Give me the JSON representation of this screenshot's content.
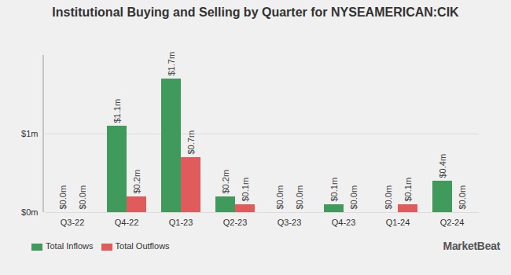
{
  "chart_data": {
    "type": "bar",
    "title": "Institutional Buying and Selling by Quarter for NYSEAMERICAN:CIK",
    "categories": [
      "Q3-22",
      "Q4-22",
      "Q1-23",
      "Q2-23",
      "Q3-23",
      "Q4-23",
      "Q1-24",
      "Q2-24"
    ],
    "series": [
      {
        "name": "Total Inflows",
        "color": "#3f9a5c",
        "values": [
          0,
          1.1,
          1.7,
          0.2,
          0,
          0.1,
          0,
          0.4
        ],
        "value_labels": [
          "$0.0m",
          "$1.1m",
          "$1.7m",
          "$0.2m",
          "$0.0m",
          "$0.1m",
          "$0.0m",
          "$0.4m"
        ]
      },
      {
        "name": "Total Outflows",
        "color": "#e05c5c",
        "values": [
          0,
          0.2,
          0.7,
          0.1,
          0,
          0,
          0.1,
          0
        ],
        "value_labels": [
          "$0.0m",
          "$0.2m",
          "$0.7m",
          "$0.1m",
          "$0.0m",
          "$0.0m",
          "$0.1m",
          "$0.0m"
        ]
      }
    ],
    "ylim": [
      0,
      2
    ],
    "yticks": [
      {
        "value": 0,
        "label": "$0m"
      },
      {
        "value": 1,
        "label": "$1m"
      }
    ],
    "grid": true,
    "data_labels": true,
    "legend": "bottom",
    "source": "MarketBeat"
  }
}
